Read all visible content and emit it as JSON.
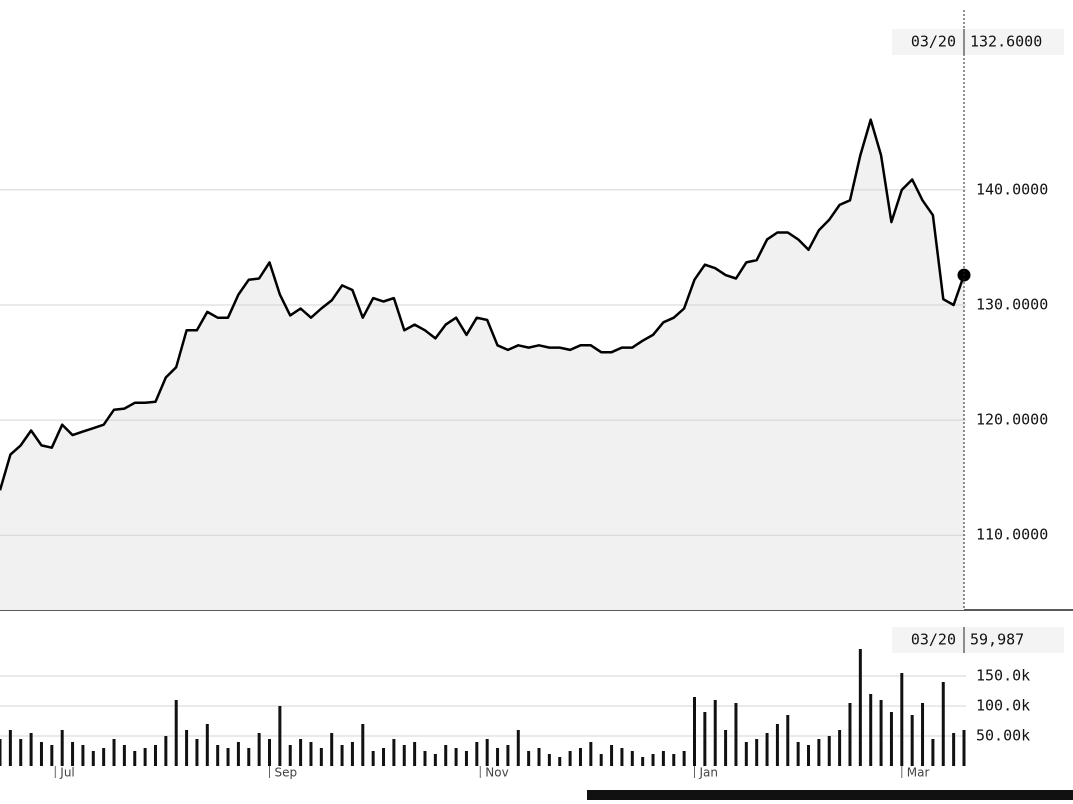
{
  "chart_data": [
    {
      "type": "line",
      "color": "#000000",
      "area_color": "#f1f1f1",
      "watermark": "ts",
      "x": [
        "06/15",
        "06/18",
        "06/21",
        "06/24",
        "06/27",
        "06/30",
        "07/03",
        "07/06",
        "07/09",
        "07/12",
        "07/15",
        "07/18",
        "07/21",
        "07/24",
        "07/27",
        "07/30",
        "08/02",
        "08/05",
        "08/08",
        "08/11",
        "08/14",
        "08/17",
        "08/20",
        "08/23",
        "08/26",
        "08/29",
        "09/01",
        "09/04",
        "09/07",
        "09/10",
        "09/13",
        "09/16",
        "09/19",
        "09/22",
        "09/25",
        "09/28",
        "10/01",
        "10/04",
        "10/07",
        "10/10",
        "10/13",
        "10/16",
        "10/19",
        "10/22",
        "10/25",
        "10/28",
        "10/31",
        "11/03",
        "11/06",
        "11/09",
        "11/12",
        "11/15",
        "11/18",
        "11/21",
        "11/24",
        "11/27",
        "11/30",
        "12/03",
        "12/06",
        "12/09",
        "12/12",
        "12/15",
        "12/18",
        "12/21",
        "12/24",
        "12/27",
        "12/30",
        "01/02",
        "01/05",
        "01/08",
        "01/11",
        "01/14",
        "01/17",
        "01/20",
        "01/23",
        "01/26",
        "01/29",
        "02/01",
        "02/04",
        "02/07",
        "02/10",
        "02/13",
        "02/16",
        "02/19",
        "02/22",
        "02/25",
        "02/28",
        "03/02",
        "03/05",
        "03/08",
        "03/11",
        "03/14",
        "03/17",
        "03/20"
      ],
      "values": [
        113.9,
        117,
        117.8,
        119.1,
        117.8,
        117.6,
        119.6,
        118.7,
        119,
        119.3,
        119.6,
        120.9,
        121,
        121.5,
        121.5,
        121.6,
        123.7,
        124.6,
        127.8,
        127.8,
        129.4,
        128.9,
        128.9,
        130.9,
        132.2,
        132.3,
        133.7,
        130.9,
        129.1,
        129.7,
        128.9,
        129.7,
        130.4,
        131.7,
        131.3,
        128.9,
        130.6,
        130.3,
        130.6,
        127.8,
        128.3,
        127.8,
        127.1,
        128.3,
        128.9,
        127.4,
        128.9,
        128.7,
        126.5,
        126.1,
        126.5,
        126.3,
        126.5,
        126.3,
        126.3,
        126.1,
        126.5,
        126.5,
        125.9,
        125.9,
        126.3,
        126.3,
        126.9,
        127.4,
        128.5,
        128.9,
        129.7,
        132.2,
        133.5,
        133.2,
        132.6,
        132.3,
        133.7,
        133.9,
        135.7,
        136.3,
        136.3,
        135.7,
        134.8,
        136.5,
        137.4,
        138.7,
        139.1,
        143,
        146.1,
        143,
        137.2,
        140,
        140.9,
        139.1,
        137.8,
        130.5,
        130,
        132.6
      ],
      "ylim": [
        103.5,
        156.5
      ],
      "yticks": [
        {
          "value": 110,
          "label": "110.0000"
        },
        {
          "value": 120,
          "label": "120.0000"
        },
        {
          "value": 130,
          "label": "130.0000"
        },
        {
          "value": 140,
          "label": "140.0000"
        }
      ],
      "grid": true,
      "crosshair": {
        "date": "03/20",
        "label": "132.6000"
      }
    },
    {
      "type": "bar",
      "color": "#111111",
      "x": [
        "06/15",
        "06/18",
        "06/21",
        "06/24",
        "06/27",
        "06/30",
        "07/03",
        "07/06",
        "07/09",
        "07/12",
        "07/15",
        "07/18",
        "07/21",
        "07/24",
        "07/27",
        "07/30",
        "08/02",
        "08/05",
        "08/08",
        "08/11",
        "08/14",
        "08/17",
        "08/20",
        "08/23",
        "08/26",
        "08/29",
        "09/01",
        "09/04",
        "09/07",
        "09/10",
        "09/13",
        "09/16",
        "09/19",
        "09/22",
        "09/25",
        "09/28",
        "10/01",
        "10/04",
        "10/07",
        "10/10",
        "10/13",
        "10/16",
        "10/19",
        "10/22",
        "10/25",
        "10/28",
        "10/31",
        "11/03",
        "11/06",
        "11/09",
        "11/12",
        "11/15",
        "11/18",
        "11/21",
        "11/24",
        "11/27",
        "11/30",
        "12/03",
        "12/06",
        "12/09",
        "12/12",
        "12/15",
        "12/18",
        "12/21",
        "12/24",
        "12/27",
        "12/30",
        "01/02",
        "01/05",
        "01/08",
        "01/11",
        "01/14",
        "01/17",
        "01/20",
        "01/23",
        "01/26",
        "01/29",
        "02/01",
        "02/04",
        "02/07",
        "02/10",
        "02/13",
        "02/16",
        "02/19",
        "02/22",
        "02/25",
        "02/28",
        "03/02",
        "03/05",
        "03/08",
        "03/11",
        "03/14",
        "03/17",
        "03/20"
      ],
      "values": [
        45000,
        60000,
        45000,
        55000,
        40000,
        35000,
        60000,
        40000,
        35000,
        25000,
        30000,
        45000,
        35000,
        25000,
        30000,
        35000,
        50000,
        110000,
        60000,
        45000,
        70000,
        35000,
        30000,
        40000,
        30000,
        55000,
        45000,
        100000,
        35000,
        45000,
        40000,
        30000,
        55000,
        35000,
        40000,
        70000,
        25000,
        30000,
        45000,
        35000,
        40000,
        25000,
        20000,
        35000,
        30000,
        25000,
        40000,
        45000,
        30000,
        35000,
        60000,
        25000,
        30000,
        20000,
        15000,
        25000,
        30000,
        40000,
        20000,
        35000,
        30000,
        25000,
        15000,
        20000,
        25000,
        20000,
        25000,
        115000,
        90000,
        110000,
        60000,
        105000,
        40000,
        45000,
        55000,
        70000,
        85000,
        40000,
        35000,
        45000,
        50000,
        60000,
        105000,
        195000,
        120000,
        110000,
        90000,
        155000,
        85000,
        105000,
        45000,
        140000,
        55000,
        59987
      ],
      "ylim": [
        0,
        250000
      ],
      "yticks": [
        {
          "value": 50000,
          "label": "50.00k"
        },
        {
          "value": 100000,
          "label": "100.0k"
        },
        {
          "value": 150000,
          "label": "150.0k"
        }
      ],
      "grid": true,
      "xticks": [
        {
          "value": "07/01",
          "label": "Jul"
        },
        {
          "value": "09/01",
          "label": "Sep"
        },
        {
          "value": "11/01",
          "label": "Nov"
        },
        {
          "value": "01/02",
          "label": "Jan"
        },
        {
          "value": "03/02",
          "label": "Mar"
        }
      ],
      "crosshair": {
        "date": "03/20",
        "label": "59,987"
      }
    }
  ]
}
